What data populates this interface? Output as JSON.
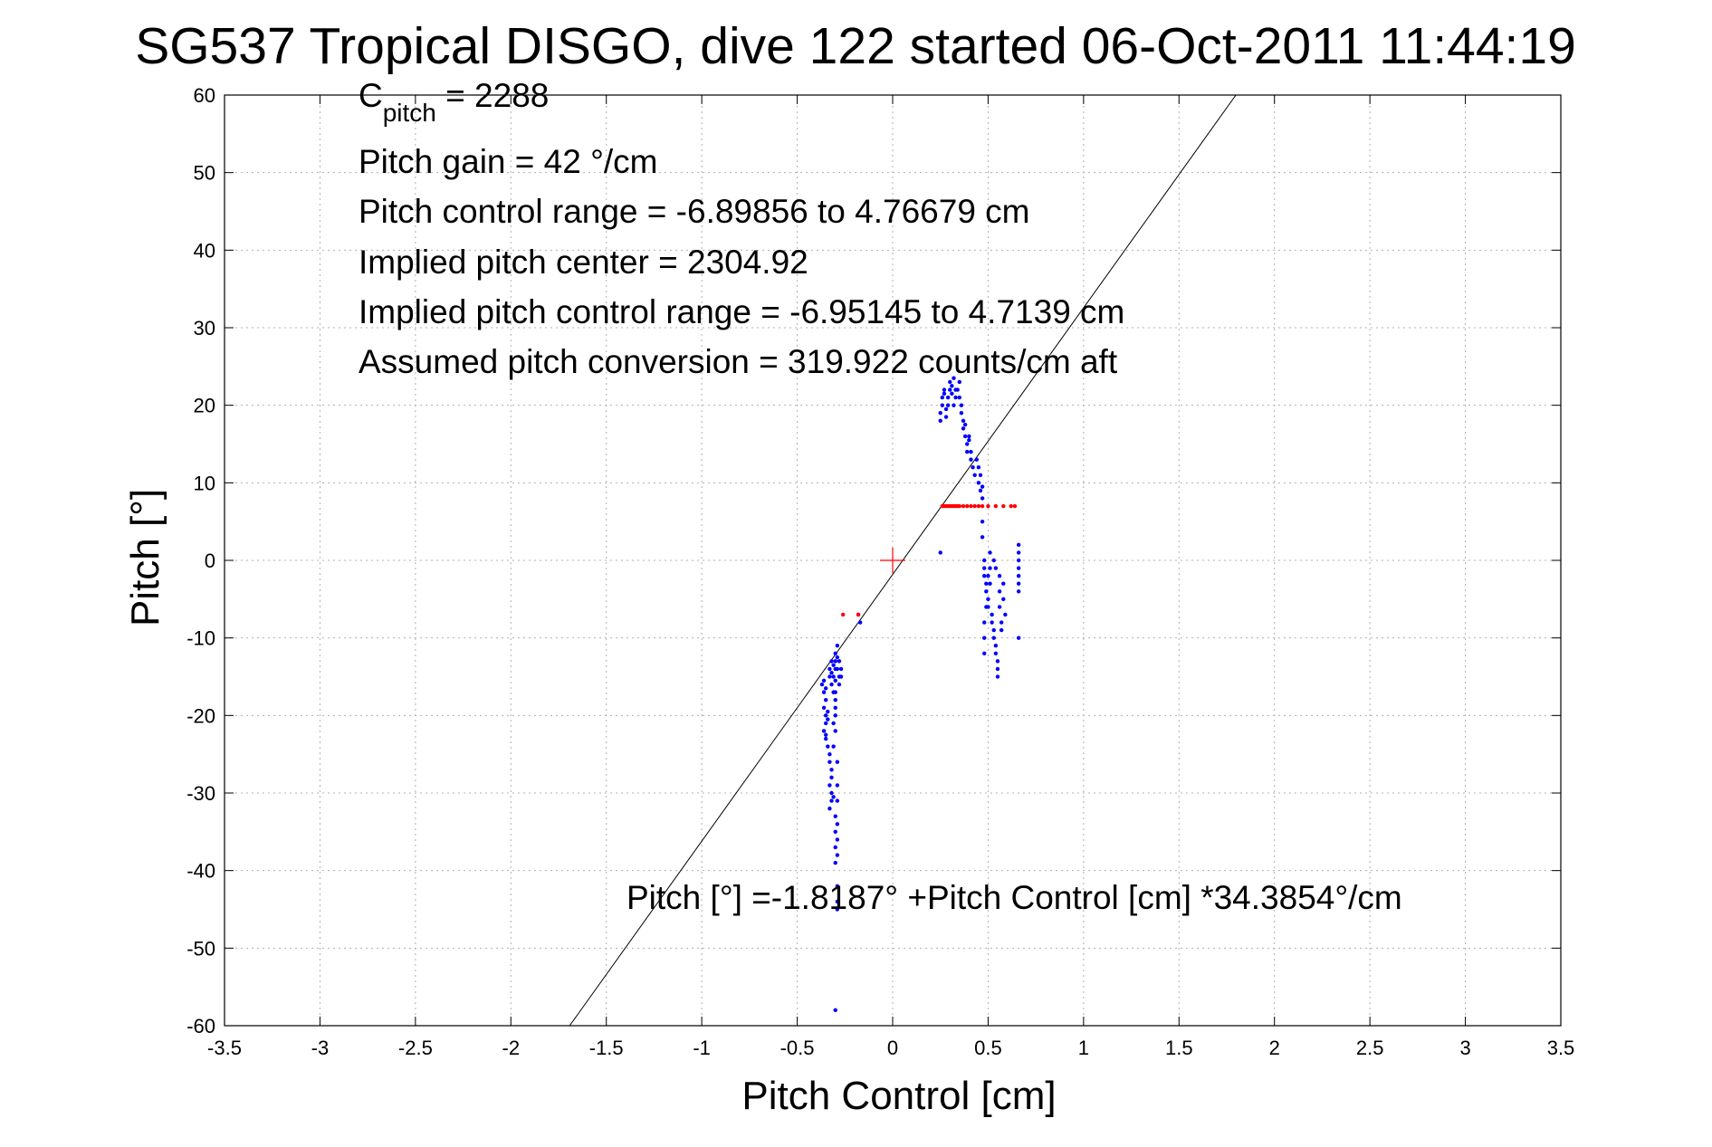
{
  "chart_data": {
    "type": "scatter",
    "title": "SG537 Tropical DISGO, dive 122 started 06-Oct-2011 11:44:19",
    "xlabel": "Pitch Control [cm]",
    "ylabel": "Pitch [°]",
    "xlim": [
      -3.5,
      3.5
    ],
    "ylim": [
      -60,
      60
    ],
    "xticks": [
      -3.5,
      -3,
      -2.5,
      -2,
      -1.5,
      -1,
      -0.5,
      0,
      0.5,
      1,
      1.5,
      2,
      2.5,
      3,
      3.5
    ],
    "yticks": [
      60,
      50,
      40,
      30,
      20,
      10,
      0,
      -10,
      -20,
      -30,
      -40,
      -50,
      -60
    ],
    "grid": true,
    "annotations": {
      "cpitch_main": "C",
      "cpitch_sub": "pitch",
      "cpitch_rest": " = 2288",
      "line2": "Pitch gain = 42 °/cm",
      "line3": "Pitch control range = -6.89856 to 4.76679 cm",
      "line4": "Implied pitch center = 2304.92",
      "line5": "Implied pitch control range = -6.95145 to 4.7139 cm",
      "line6": "Assumed pitch conversion = 319.922 counts/cm aft",
      "fit_equation": "Pitch [°] =-1.8187° +Pitch Control [cm] *34.3854°/cm"
    },
    "fit_line": {
      "intercept": -1.8187,
      "slope": 34.3854,
      "color": "#000000"
    },
    "center_marker": {
      "x": 0,
      "y": 0,
      "color": "#ff0000"
    },
    "series": [
      {
        "color": "#0000ff",
        "points": [
          [
            -0.37,
            -16
          ],
          [
            -0.36,
            -15.5
          ],
          [
            -0.36,
            -17
          ],
          [
            -0.35,
            -16.5
          ],
          [
            -0.35,
            -18
          ],
          [
            -0.36,
            -19
          ],
          [
            -0.35,
            -20
          ],
          [
            -0.35,
            -21
          ],
          [
            -0.36,
            -22
          ],
          [
            -0.35,
            -23
          ],
          [
            -0.34,
            -24
          ],
          [
            -0.35,
            -22.5
          ],
          [
            -0.34,
            -20.5
          ],
          [
            -0.34,
            -19.5
          ],
          [
            -0.33,
            -14
          ],
          [
            -0.33,
            -15
          ],
          [
            -0.32,
            -13
          ],
          [
            -0.32,
            -14.5
          ],
          [
            -0.32,
            -16
          ],
          [
            -0.31,
            -13.5
          ],
          [
            -0.31,
            -15
          ],
          [
            -0.31,
            -17
          ],
          [
            -0.3,
            -14
          ],
          [
            -0.3,
            -15.5
          ],
          [
            -0.3,
            -12
          ],
          [
            -0.3,
            -13
          ],
          [
            -0.29,
            -11
          ],
          [
            -0.29,
            -12.5
          ],
          [
            -0.29,
            -14
          ],
          [
            -0.28,
            -15
          ],
          [
            -0.28,
            -16
          ],
          [
            -0.28,
            -13
          ],
          [
            -0.33,
            -25
          ],
          [
            -0.33,
            -26
          ],
          [
            -0.32,
            -27
          ],
          [
            -0.32,
            -28
          ],
          [
            -0.33,
            -29
          ],
          [
            -0.32,
            -30
          ],
          [
            -0.32,
            -31
          ],
          [
            -0.33,
            -32
          ],
          [
            -0.31,
            -24
          ],
          [
            -0.31,
            -21
          ],
          [
            -0.3,
            -19
          ],
          [
            -0.3,
            -18
          ],
          [
            -0.3,
            -20
          ],
          [
            -0.3,
            -22
          ],
          [
            -0.31,
            -30.5
          ],
          [
            -0.3,
            -33
          ],
          [
            -0.3,
            -35
          ],
          [
            -0.29,
            -36
          ],
          [
            -0.3,
            -37
          ],
          [
            -0.29,
            -38
          ],
          [
            -0.3,
            -39
          ],
          [
            -0.29,
            -34
          ],
          [
            -0.29,
            -31
          ],
          [
            -0.29,
            -29
          ],
          [
            -0.29,
            -26
          ],
          [
            -0.3,
            -17
          ],
          [
            -0.29,
            -42
          ],
          [
            -0.29,
            -44
          ],
          [
            -0.29,
            -45
          ],
          [
            -0.3,
            -58
          ],
          [
            -0.18,
            -7
          ],
          [
            -0.17,
            -8
          ],
          [
            -0.27,
            -15
          ],
          [
            -0.27,
            -14
          ],
          [
            0.25,
            18
          ],
          [
            0.25,
            19
          ],
          [
            0.26,
            20
          ],
          [
            0.26,
            21
          ],
          [
            0.27,
            21.5
          ],
          [
            0.27,
            22
          ],
          [
            0.28,
            18.5
          ],
          [
            0.28,
            19.5
          ],
          [
            0.29,
            20
          ],
          [
            0.29,
            21
          ],
          [
            0.3,
            22
          ],
          [
            0.3,
            23
          ],
          [
            0.31,
            22.5
          ],
          [
            0.31,
            21.5
          ],
          [
            0.32,
            23.5
          ],
          [
            0.32,
            20
          ],
          [
            0.33,
            21
          ],
          [
            0.33,
            22
          ],
          [
            0.34,
            22
          ],
          [
            0.35,
            23
          ],
          [
            0.35,
            21
          ],
          [
            0.36,
            20
          ],
          [
            0.36,
            19
          ],
          [
            0.37,
            18
          ],
          [
            0.37,
            17
          ],
          [
            0.38,
            16
          ],
          [
            0.38,
            17.5
          ],
          [
            0.39,
            15
          ],
          [
            0.39,
            14
          ],
          [
            0.4,
            16
          ],
          [
            0.4,
            15.5
          ],
          [
            0.41,
            14
          ],
          [
            0.41,
            13
          ],
          [
            0.42,
            12
          ],
          [
            0.43,
            11
          ],
          [
            0.44,
            13
          ],
          [
            0.45,
            12
          ],
          [
            0.45,
            10
          ],
          [
            0.46,
            11
          ],
          [
            0.46,
            9
          ],
          [
            0.47,
            8
          ],
          [
            0.47,
            9.5
          ],
          [
            0.25,
            1
          ],
          [
            0.47,
            5
          ],
          [
            0.47,
            3
          ],
          [
            0.48,
            0
          ],
          [
            0.48,
            -1
          ],
          [
            0.48,
            -2
          ],
          [
            0.49,
            -3
          ],
          [
            0.49,
            -4
          ],
          [
            0.5,
            -5
          ],
          [
            0.5,
            -6
          ],
          [
            0.51,
            -3
          ],
          [
            0.51,
            -1
          ],
          [
            0.51,
            1
          ],
          [
            0.52,
            -7
          ],
          [
            0.52,
            -8
          ],
          [
            0.53,
            -9
          ],
          [
            0.53,
            -10
          ],
          [
            0.54,
            -11
          ],
          [
            0.54,
            -12
          ],
          [
            0.55,
            -13
          ],
          [
            0.55,
            -14
          ],
          [
            0.55,
            -15
          ],
          [
            0.56,
            -6
          ],
          [
            0.56,
            -4
          ],
          [
            0.56,
            -2
          ],
          [
            0.57,
            -8
          ],
          [
            0.57,
            -9
          ],
          [
            0.58,
            -5
          ],
          [
            0.58,
            -3
          ],
          [
            0.59,
            -7
          ],
          [
            0.48,
            -12
          ],
          [
            0.48,
            -10
          ],
          [
            0.48,
            -8
          ],
          [
            0.49,
            -6
          ],
          [
            0.5,
            -2
          ],
          [
            0.53,
            0
          ],
          [
            0.54,
            -1
          ],
          [
            0.66,
            2
          ],
          [
            0.66,
            1
          ],
          [
            0.66,
            0
          ],
          [
            0.66,
            -1
          ],
          [
            0.66,
            -2
          ],
          [
            0.66,
            -3
          ],
          [
            0.66,
            -4
          ],
          [
            0.66,
            -10
          ]
        ]
      },
      {
        "color": "#ff0000",
        "points": [
          [
            -0.26,
            -7
          ],
          [
            -0.18,
            -7
          ],
          [
            0.26,
            7
          ],
          [
            0.27,
            7
          ],
          [
            0.28,
            7
          ],
          [
            0.29,
            7
          ],
          [
            0.3,
            7
          ],
          [
            0.31,
            7
          ],
          [
            0.32,
            7
          ],
          [
            0.33,
            7
          ],
          [
            0.34,
            7
          ],
          [
            0.35,
            7
          ],
          [
            0.37,
            7
          ],
          [
            0.39,
            7
          ],
          [
            0.41,
            7
          ],
          [
            0.43,
            7
          ],
          [
            0.45,
            7
          ],
          [
            0.47,
            7
          ],
          [
            0.5,
            7
          ],
          [
            0.54,
            7
          ],
          [
            0.58,
            7
          ],
          [
            0.62,
            7
          ],
          [
            0.64,
            7
          ]
        ]
      }
    ]
  }
}
